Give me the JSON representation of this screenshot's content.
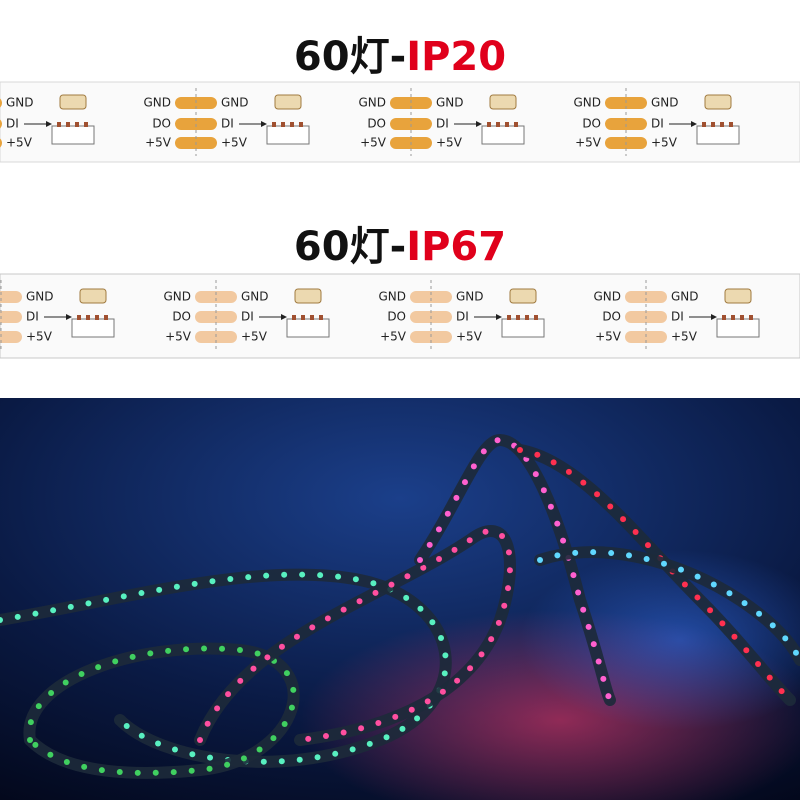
{
  "sections": [
    {
      "title_prefix": "60灯-",
      "title_suffix": "IP20",
      "labels": {
        "gnd": "GND",
        "do": "DO",
        "di": "DI",
        "vcc": "+5V"
      }
    },
    {
      "title_prefix": "60灯-",
      "title_suffix": "IP67",
      "labels": {
        "gnd": "GND",
        "do": "DO",
        "di": "DI",
        "vcc": "+5V"
      }
    }
  ]
}
